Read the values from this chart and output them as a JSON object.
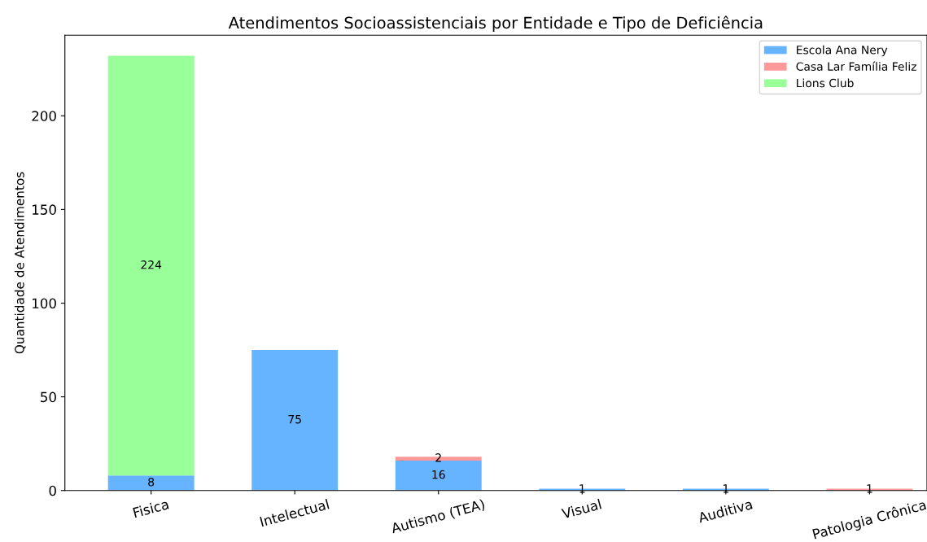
{
  "chart_data": {
    "type": "bar",
    "stacked": true,
    "title": "Atendimentos Socioassistenciais por Entidade e Tipo de Deficiência",
    "ylabel": "Quantidade de Atendimentos",
    "categories": [
      "Fisica",
      "Intelectual",
      "Autismo (TEA)",
      "Visual",
      "Auditiva",
      "Patologia Crônica"
    ],
    "series": [
      {
        "name": "Escola Ana Nery",
        "color": "#66b3ff",
        "values": [
          8,
          75,
          16,
          1,
          1,
          0
        ],
        "value_labels": [
          "8",
          "75",
          "16",
          "1",
          "1",
          null
        ]
      },
      {
        "name": "Casa Lar Família Feliz",
        "color": "#ff9999",
        "values": [
          0,
          0,
          2,
          0,
          0,
          1
        ],
        "value_labels": [
          null,
          null,
          "2",
          null,
          null,
          "1"
        ]
      },
      {
        "name": "Lions Club",
        "color": "#99ff99",
        "values": [
          224,
          0,
          0,
          0,
          0,
          0
        ],
        "value_labels": [
          "224",
          null,
          null,
          null,
          null,
          null
        ]
      }
    ],
    "ylim": [
      0,
      243
    ],
    "yticks": [
      0,
      50,
      100,
      150,
      200
    ],
    "grid": false,
    "legend": "top right"
  }
}
